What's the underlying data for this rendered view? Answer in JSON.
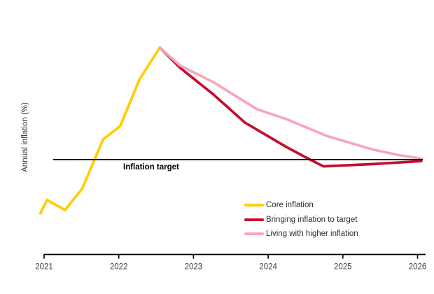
{
  "figure": {
    "y_axis_label": "Annual inflation (%)",
    "target_label": "Inflation target",
    "background_color": "#ffffff",
    "axis_color": "#000000",
    "tick_text_color": "#414042"
  },
  "chart_data": {
    "type": "line",
    "title": "",
    "xlabel": "",
    "ylabel": "Annual inflation (%)",
    "x_ticks": [
      2021,
      2022,
      2023,
      2024,
      2025,
      2026
    ],
    "x_tick_labels": [
      "2021",
      "2022",
      "2023",
      "2024",
      "2025",
      "2026"
    ],
    "xlim": [
      2020.9,
      2026.15
    ],
    "ylim": [
      -2.4,
      9.1
    ],
    "y_ticks_visible": false,
    "grid": false,
    "legend_position": "lower right",
    "target_line": {
      "label": "Inflation target",
      "value": 2,
      "color": "#000000"
    },
    "series": [
      {
        "name": "Core inflation",
        "color": "#FFCE00",
        "x": [
          2020.95,
          2021.04,
          2021.28,
          2021.51,
          2021.79,
          2022.02,
          2022.28,
          2022.55
        ],
        "y": [
          -0.4,
          0.2,
          -0.25,
          0.7,
          2.9,
          3.5,
          5.6,
          7.0
        ]
      },
      {
        "name": "Bringing inflation to target",
        "color": "#C60C30",
        "x": [
          2022.55,
          2022.82,
          2023.27,
          2023.69,
          2024.25,
          2024.56,
          2024.74,
          2025.4,
          2026.05
        ],
        "y": [
          7.0,
          6.1,
          4.9,
          3.65,
          2.55,
          2.0,
          1.7,
          1.8,
          1.93
        ]
      },
      {
        "name": "Living with higher inflation",
        "color": "#F7A6BB",
        "x": [
          2022.55,
          2022.82,
          2023.27,
          2023.85,
          2024.25,
          2024.79,
          2025.4,
          2025.75,
          2026.05
        ],
        "y": [
          7.0,
          6.2,
          5.45,
          4.25,
          3.8,
          3.05,
          2.45,
          2.2,
          2.05
        ]
      }
    ]
  }
}
